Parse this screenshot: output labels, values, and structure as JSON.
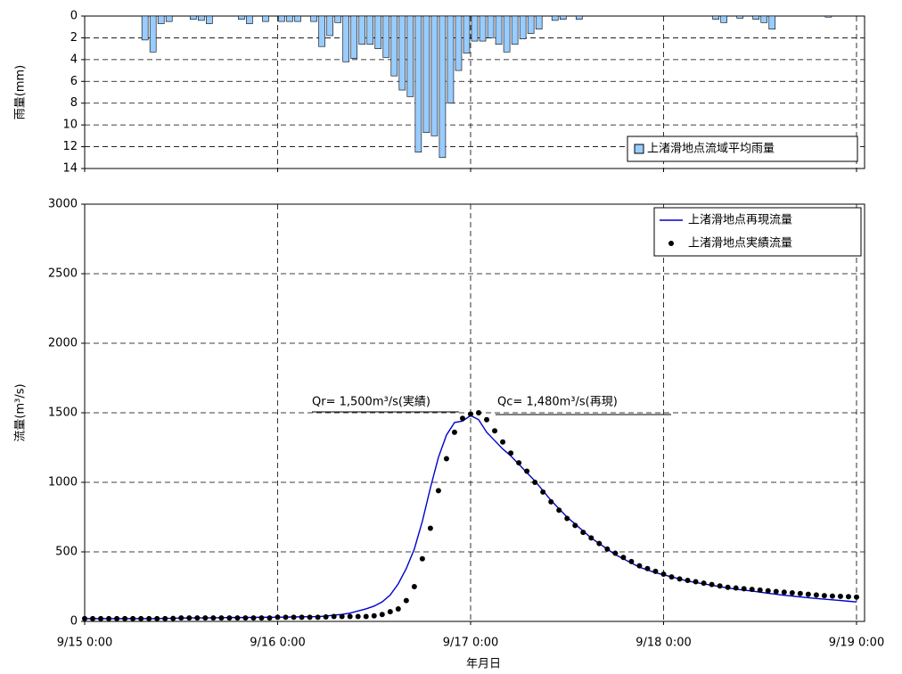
{
  "chart_data": [
    {
      "type": "bar",
      "ylabel": "雨量(mm)",
      "y_inverted": true,
      "xlim": [
        0,
        97
      ],
      "xticks": [
        0,
        24,
        48,
        72,
        96
      ],
      "ylim": [
        0,
        14
      ],
      "yticks": [
        0,
        2,
        4,
        6,
        8,
        10,
        12,
        14
      ],
      "grid": true,
      "legend": "lower right",
      "series": [
        {
          "name": "上渚滑地点流域平均雨量",
          "color": "#99ccff",
          "x": [
            7,
            8,
            9,
            10,
            13,
            14,
            15,
            19,
            20,
            22,
            24,
            25,
            26,
            28,
            29,
            30,
            31,
            32,
            33,
            34,
            35,
            36,
            37,
            38,
            39,
            40,
            41,
            42,
            43,
            44,
            45,
            46,
            47,
            48,
            49,
            50,
            51,
            52,
            53,
            54,
            55,
            56,
            58,
            59,
            61,
            78,
            79,
            81,
            83,
            84,
            85,
            92
          ],
          "values": [
            2.2,
            3.3,
            0.7,
            0.5,
            0.3,
            0.4,
            0.7,
            0.3,
            0.7,
            0.5,
            0.5,
            0.5,
            0.5,
            0.5,
            2.8,
            1.8,
            0.6,
            4.2,
            3.9,
            2.6,
            2.6,
            3.0,
            3.8,
            5.5,
            6.8,
            7.4,
            12.5,
            10.7,
            11.0,
            13.0,
            8.0,
            5.0,
            3.4,
            2.3,
            2.3,
            2.0,
            2.6,
            3.3,
            2.6,
            2.1,
            1.6,
            1.2,
            0.4,
            0.3,
            0.3,
            0.3,
            0.6,
            0.2,
            0.3,
            0.6,
            1.2,
            0.1
          ]
        }
      ]
    },
    {
      "type": "line",
      "ylabel": "流量(m³/s)",
      "xlabel": "年月日",
      "xlim": [
        0,
        97
      ],
      "xticks": [
        {
          "value": 0,
          "label": "9/15 0:00"
        },
        {
          "value": 24,
          "label": "9/16 0:00"
        },
        {
          "value": 48,
          "label": "9/17 0:00"
        },
        {
          "value": 72,
          "label": "9/18 0:00"
        },
        {
          "value": 96,
          "label": "9/19 0:00"
        }
      ],
      "ylim": [
        0,
        3000
      ],
      "yticks": [
        0,
        500,
        1000,
        1500,
        2000,
        2500,
        3000
      ],
      "grid": true,
      "legend": "upper right",
      "annotations": [
        "Qr= 1,500m³/s(実績)",
        "Qc= 1,480m³/s(再現)"
      ],
      "x": [
        0,
        1,
        2,
        3,
        4,
        5,
        6,
        7,
        8,
        9,
        10,
        11,
        12,
        13,
        14,
        15,
        16,
        17,
        18,
        19,
        20,
        21,
        22,
        23,
        24,
        25,
        26,
        27,
        28,
        29,
        30,
        31,
        32,
        33,
        34,
        35,
        36,
        37,
        38,
        39,
        40,
        41,
        42,
        43,
        44,
        45,
        46,
        47,
        48,
        49,
        50,
        51,
        52,
        53,
        54,
        55,
        56,
        57,
        58,
        59,
        60,
        61,
        62,
        63,
        64,
        65,
        66,
        67,
        68,
        69,
        70,
        71,
        72,
        73,
        74,
        75,
        76,
        77,
        78,
        79,
        80,
        81,
        82,
        83,
        84,
        85,
        86,
        87,
        88,
        89,
        90,
        91,
        92,
        93,
        94,
        95,
        96
      ],
      "series": [
        {
          "name": "上渚滑地点再現流量",
          "color": "#0000cc",
          "style": "line",
          "values": [
            20,
            20,
            20,
            20,
            20,
            20,
            20,
            20,
            20,
            20,
            22,
            22,
            24,
            25,
            25,
            25,
            26,
            27,
            28,
            28,
            28,
            29,
            30,
            30,
            30,
            31,
            32,
            33,
            34,
            35,
            38,
            45,
            50,
            60,
            75,
            90,
            110,
            140,
            190,
            270,
            380,
            520,
            720,
            960,
            1180,
            1340,
            1430,
            1440,
            1480,
            1450,
            1360,
            1300,
            1240,
            1190,
            1130,
            1070,
            1010,
            940,
            870,
            810,
            750,
            700,
            650,
            600,
            560,
            520,
            480,
            450,
            420,
            390,
            370,
            350,
            335,
            320,
            305,
            290,
            280,
            270,
            260,
            250,
            240,
            232,
            225,
            218,
            210,
            202,
            195,
            188,
            182,
            176,
            170,
            165,
            160,
            155,
            150,
            145,
            140
          ]
        },
        {
          "name": "上渚滑地点実績流量",
          "color": "#000000",
          "style": "dots",
          "values": [
            20,
            20,
            20,
            20,
            20,
            20,
            20,
            20,
            20,
            20,
            20,
            22,
            25,
            25,
            25,
            25,
            25,
            25,
            25,
            25,
            25,
            25,
            25,
            25,
            30,
            30,
            30,
            30,
            30,
            30,
            32,
            35,
            35,
            35,
            35,
            35,
            40,
            50,
            70,
            90,
            150,
            250,
            450,
            670,
            940,
            1170,
            1360,
            1460,
            1490,
            1500,
            1450,
            1370,
            1290,
            1210,
            1140,
            1080,
            1000,
            930,
            860,
            800,
            740,
            690,
            640,
            600,
            560,
            520,
            490,
            460,
            430,
            400,
            380,
            360,
            340,
            320,
            305,
            295,
            285,
            275,
            265,
            255,
            245,
            240,
            235,
            230,
            225,
            220,
            215,
            210,
            205,
            200,
            195,
            190,
            185,
            182,
            180,
            178,
            175
          ]
        }
      ]
    }
  ]
}
